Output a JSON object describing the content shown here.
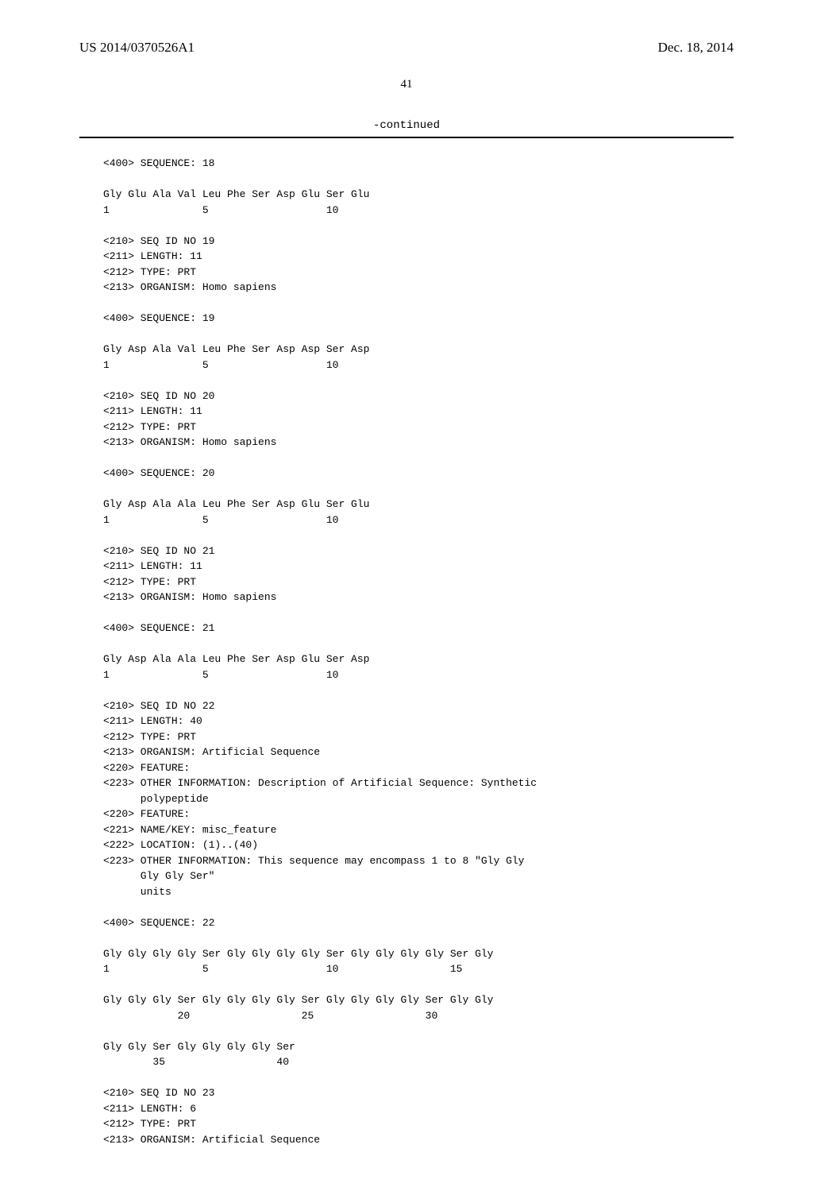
{
  "header": {
    "pub_number": "US 2014/0370526A1",
    "pub_date": "Dec. 18, 2014"
  },
  "page_number": "41",
  "continued_label": "-continued",
  "blocks": [
    {
      "lines": [
        "<400> SEQUENCE: 18"
      ]
    },
    {
      "lines": [
        "Gly Glu Ala Val Leu Phe Ser Asp Glu Ser Glu",
        "1               5                   10"
      ]
    },
    {
      "lines": [
        "<210> SEQ ID NO 19",
        "<211> LENGTH: 11",
        "<212> TYPE: PRT",
        "<213> ORGANISM: Homo sapiens"
      ]
    },
    {
      "lines": [
        "<400> SEQUENCE: 19"
      ]
    },
    {
      "lines": [
        "Gly Asp Ala Val Leu Phe Ser Asp Asp Ser Asp",
        "1               5                   10"
      ]
    },
    {
      "lines": [
        "<210> SEQ ID NO 20",
        "<211> LENGTH: 11",
        "<212> TYPE: PRT",
        "<213> ORGANISM: Homo sapiens"
      ]
    },
    {
      "lines": [
        "<400> SEQUENCE: 20"
      ]
    },
    {
      "lines": [
        "Gly Asp Ala Ala Leu Phe Ser Asp Glu Ser Glu",
        "1               5                   10"
      ]
    },
    {
      "lines": [
        "<210> SEQ ID NO 21",
        "<211> LENGTH: 11",
        "<212> TYPE: PRT",
        "<213> ORGANISM: Homo sapiens"
      ]
    },
    {
      "lines": [
        "<400> SEQUENCE: 21"
      ]
    },
    {
      "lines": [
        "Gly Asp Ala Ala Leu Phe Ser Asp Glu Ser Asp",
        "1               5                   10"
      ]
    },
    {
      "lines": [
        "<210> SEQ ID NO 22",
        "<211> LENGTH: 40",
        "<212> TYPE: PRT",
        "<213> ORGANISM: Artificial Sequence",
        "<220> FEATURE:",
        "<223> OTHER INFORMATION: Description of Artificial Sequence: Synthetic",
        "      polypeptide",
        "<220> FEATURE:",
        "<221> NAME/KEY: misc_feature",
        "<222> LOCATION: (1)..(40)",
        "<223> OTHER INFORMATION: This sequence may encompass 1 to 8 \"Gly Gly",
        "      Gly Gly Ser\"",
        "      units"
      ]
    },
    {
      "lines": [
        "<400> SEQUENCE: 22"
      ]
    },
    {
      "lines": [
        "Gly Gly Gly Gly Ser Gly Gly Gly Gly Ser Gly Gly Gly Gly Ser Gly",
        "1               5                   10                  15"
      ]
    },
    {
      "lines": [
        "Gly Gly Gly Ser Gly Gly Gly Gly Ser Gly Gly Gly Gly Ser Gly Gly",
        "            20                  25                  30"
      ]
    },
    {
      "lines": [
        "Gly Gly Ser Gly Gly Gly Gly Ser",
        "        35                  40"
      ]
    },
    {
      "lines": [
        "<210> SEQ ID NO 23",
        "<211> LENGTH: 6",
        "<212> TYPE: PRT",
        "<213> ORGANISM: Artificial Sequence"
      ]
    }
  ]
}
